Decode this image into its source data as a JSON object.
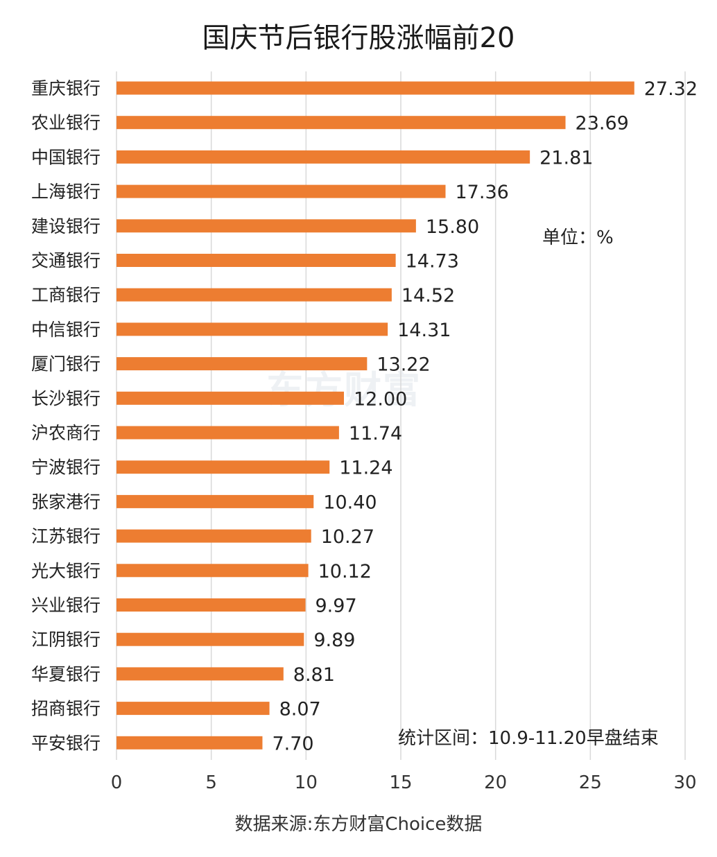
{
  "chart_data": {
    "type": "bar",
    "orientation": "horizontal",
    "title": "国庆节后银行股涨幅前20",
    "unit_label": "单位：%",
    "period_label": "统计区间：10.9-11.20早盘结束",
    "source_label": "数据来源:东方财富Choice数据",
    "watermark": "东方财富",
    "categories": [
      "重庆银行",
      "农业银行",
      "中国银行",
      "上海银行",
      "建设银行",
      "交通银行",
      "工商银行",
      "中信银行",
      "厦门银行",
      "长沙银行",
      "沪农商行",
      "宁波银行",
      "张家港行",
      "江苏银行",
      "光大银行",
      "兴业银行",
      "江阴银行",
      "华夏银行",
      "招商银行",
      "平安银行"
    ],
    "values": [
      27.32,
      23.69,
      21.81,
      17.36,
      15.8,
      14.73,
      14.52,
      14.31,
      13.22,
      12.0,
      11.74,
      11.24,
      10.4,
      10.27,
      10.12,
      9.97,
      9.89,
      8.81,
      8.07,
      7.7
    ],
    "value_labels": [
      "27.32",
      "23.69",
      "21.81",
      "17.36",
      "15.80",
      "14.73",
      "14.52",
      "14.31",
      "13.22",
      "12.00",
      "11.74",
      "11.24",
      "10.40",
      "10.27",
      "10.12",
      "9.97",
      "9.89",
      "8.81",
      "8.07",
      "7.70"
    ],
    "xlim": [
      0,
      30
    ],
    "xticks": [
      "0",
      "5",
      "10",
      "15",
      "20",
      "25",
      "30"
    ],
    "xtick_values": [
      0,
      5,
      10,
      15,
      20,
      25,
      30
    ],
    "grid": true,
    "bar_color": "#ED7D31",
    "grid_color": "#d9d9d9"
  }
}
